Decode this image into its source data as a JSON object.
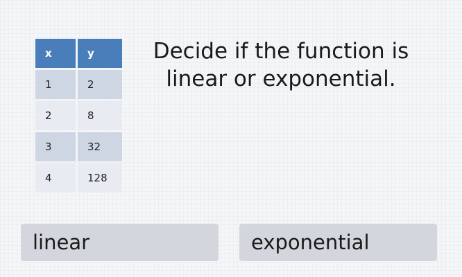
{
  "table": {
    "headers": [
      "x",
      "y"
    ],
    "rows": [
      [
        "1",
        "2"
      ],
      [
        "2",
        "8"
      ],
      [
        "3",
        "32"
      ],
      [
        "4",
        "128"
      ]
    ]
  },
  "question": "Decide if the function is linear or exponential.",
  "options": [
    "linear",
    "exponential"
  ],
  "colors": {
    "header": "#4a7ebb",
    "row_dark": "#cfd6e3",
    "row_light": "#e8ebf1",
    "button": "#d3d7dd"
  }
}
